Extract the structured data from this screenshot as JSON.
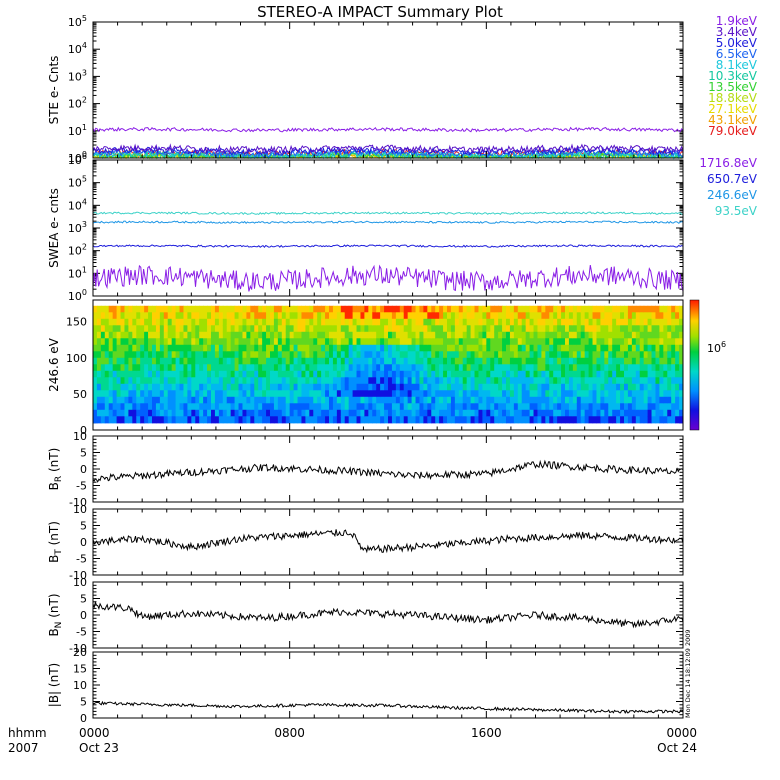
{
  "chart_data": {
    "title": "STEREO-A IMPACT Summary Plot",
    "type": "line",
    "x_axis": {
      "hhmm_label": "hhmm",
      "year_label": "2007",
      "ticks": [
        {
          "time": "0000",
          "date": "Oct 23"
        },
        {
          "time": "0800",
          "date": ""
        },
        {
          "time": "1600",
          "date": ""
        },
        {
          "time": "0000",
          "date": "Oct 24"
        }
      ],
      "range_hours": [
        0,
        24
      ]
    },
    "timestamp_text": "Mon Dec 14 18:12:09 2009",
    "panels": [
      {
        "id": "ste",
        "ylabel": "STE e- Cnts",
        "scale": "log",
        "ylim_exp": [
          0,
          5
        ],
        "series": [
          {
            "name": "1.9keV",
            "color": "#8a1ee6",
            "level": 11
          },
          {
            "name": "3.4keV",
            "color": "#5a14c8",
            "level": 2.2
          },
          {
            "name": "5.0keV",
            "color": "#1e1edc",
            "level": 1.8
          },
          {
            "name": "6.5keV",
            "color": "#1e64f0",
            "level": 1.5
          },
          {
            "name": "8.1keV",
            "color": "#1ec8dc",
            "level": 1.3
          },
          {
            "name": "10.3keV",
            "color": "#14c8a0",
            "level": 1.2
          },
          {
            "name": "13.5keV",
            "color": "#32d232",
            "level": 1.15
          },
          {
            "name": "18.8keV",
            "color": "#b4dc14",
            "level": 1.1
          },
          {
            "name": "27.1keV",
            "color": "#e6dc00",
            "level": 1.08
          },
          {
            "name": "43.1keV",
            "color": "#f0a000",
            "level": 1.05
          },
          {
            "name": "79.0keV",
            "color": "#e61e1e",
            "level": 1.5
          }
        ]
      },
      {
        "id": "swea",
        "ylabel": "SWEA e- cnts",
        "scale": "log",
        "ylim_exp": [
          0,
          6
        ],
        "series": [
          {
            "name": "1716.8eV",
            "color": "#8a1ee6",
            "level": 6
          },
          {
            "name": "650.7eV",
            "color": "#1e1edc",
            "level": 160
          },
          {
            "name": "246.6eV",
            "color": "#1e96e6",
            "level": 1800
          },
          {
            "name": "93.5eV",
            "color": "#3cd2c8",
            "level": 4500
          }
        ]
      },
      {
        "id": "pad",
        "ylabel": "246.6 eV",
        "type": "heatmap",
        "ylim": [
          0,
          180
        ],
        "yticks": [
          0,
          50,
          100,
          150
        ],
        "colorbar_label": "10",
        "colorbar_exp": "6"
      },
      {
        "id": "br",
        "ylabel": "B",
        "ysub": "R",
        "yunit": " (nT)",
        "ylim": [
          -10,
          10
        ],
        "yticks": [
          -10,
          -5,
          0,
          5,
          10
        ],
        "segments": [
          {
            "x": 0,
            "y": -3
          },
          {
            "x": 3,
            "y": -1.5
          },
          {
            "x": 7,
            "y": 0.5
          },
          {
            "x": 10,
            "y": -0.5
          },
          {
            "x": 13,
            "y": -2
          },
          {
            "x": 16,
            "y": -1.5
          },
          {
            "x": 18,
            "y": 1.5
          },
          {
            "x": 21,
            "y": 0
          },
          {
            "x": 24,
            "y": -1
          }
        ]
      },
      {
        "id": "bt",
        "ylabel": "B",
        "ysub": "T",
        "yunit": " (nT)",
        "ylim": [
          -10,
          10
        ],
        "yticks": [
          -10,
          -5,
          0,
          5,
          10
        ],
        "segments": [
          {
            "x": 0,
            "y": 0
          },
          {
            "x": 2,
            "y": 1
          },
          {
            "x": 4,
            "y": -1.5
          },
          {
            "x": 6,
            "y": 1
          },
          {
            "x": 8,
            "y": 2
          },
          {
            "x": 10.5,
            "y": 3
          },
          {
            "x": 11,
            "y": -2.5
          },
          {
            "x": 14,
            "y": -1
          },
          {
            "x": 17,
            "y": 1
          },
          {
            "x": 20,
            "y": 2
          },
          {
            "x": 24,
            "y": 0.5
          }
        ]
      },
      {
        "id": "bn",
        "ylabel": "B",
        "ysub": "N",
        "yunit": " (nT)",
        "ylim": [
          -10,
          10
        ],
        "yticks": [
          -10,
          -5,
          0,
          5,
          10
        ],
        "segments": [
          {
            "x": 0,
            "y": 3
          },
          {
            "x": 1.5,
            "y": 2
          },
          {
            "x": 2,
            "y": -0.5
          },
          {
            "x": 4,
            "y": 0.5
          },
          {
            "x": 7,
            "y": -1
          },
          {
            "x": 10,
            "y": 1
          },
          {
            "x": 13,
            "y": 0
          },
          {
            "x": 16,
            "y": -1.5
          },
          {
            "x": 18,
            "y": 0
          },
          {
            "x": 20,
            "y": -1
          },
          {
            "x": 22,
            "y": -3
          },
          {
            "x": 24,
            "y": -1
          }
        ]
      },
      {
        "id": "bmag",
        "ylabel": "|B| (nT)",
        "ylim": [
          0,
          20
        ],
        "yticks": [
          0,
          5,
          10,
          15,
          20
        ],
        "segments": [
          {
            "x": 0,
            "y": 4.5
          },
          {
            "x": 3,
            "y": 4
          },
          {
            "x": 6,
            "y": 3.5
          },
          {
            "x": 9,
            "y": 4
          },
          {
            "x": 12,
            "y": 3.8
          },
          {
            "x": 15,
            "y": 3
          },
          {
            "x": 18,
            "y": 2.5
          },
          {
            "x": 21,
            "y": 2
          },
          {
            "x": 24,
            "y": 2
          }
        ]
      }
    ]
  }
}
